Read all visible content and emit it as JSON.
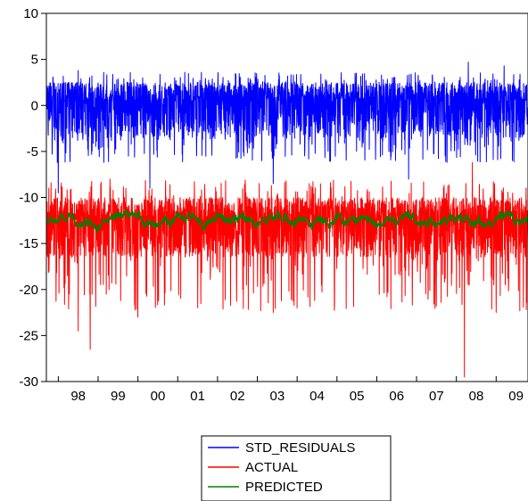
{
  "chart_data": {
    "type": "line",
    "title": "",
    "xlabel": "",
    "ylabel": "",
    "ylim": [
      -30,
      10
    ],
    "yticks": [
      10,
      5,
      0,
      -5,
      -10,
      -15,
      -20,
      -25,
      -30
    ],
    "yticks_text": [
      "10",
      "5",
      "0",
      "-5",
      "-10",
      "-15",
      "-20",
      "-25",
      "-30"
    ],
    "xlim": [
      1997.7,
      2009.8
    ],
    "xticks_text": [
      "98",
      "99",
      "00",
      "01",
      "02",
      "03",
      "04",
      "05",
      "06",
      "07",
      "08",
      "09"
    ],
    "grid": false,
    "legend_position": "bottom-center",
    "series": [
      {
        "name": "STD_RESIDUALS",
        "color": "#0000ff",
        "mean": 0.4,
        "upper_band": 2.5,
        "lower_band": -3.5,
        "min": -9.5,
        "max": 4.7,
        "spikes": [
          {
            "x": 2008.3,
            "y": 4.7
          },
          {
            "x": 2009.2,
            "y": 4.3
          },
          {
            "x": 1998.5,
            "y": 3.8
          },
          {
            "x": 1998.0,
            "y": -9.5
          },
          {
            "x": 2000.3,
            "y": -9.0
          },
          {
            "x": 2003.4,
            "y": -8.5
          },
          {
            "x": 2006.8,
            "y": -8.0
          }
        ]
      },
      {
        "name": "ACTUAL",
        "color": "#ff0000",
        "mean": -12.5,
        "upper_band": -10.0,
        "lower_band": -16.5,
        "min": -29.5,
        "max": -6.2,
        "spikes": [
          {
            "x": 2008.2,
            "y": -29.5
          },
          {
            "x": 1998.8,
            "y": -26.5
          },
          {
            "x": 1998.5,
            "y": -24.5
          },
          {
            "x": 2000.0,
            "y": -23.0
          },
          {
            "x": 2009.0,
            "y": -22.5
          },
          {
            "x": 2003.4,
            "y": -22.5
          },
          {
            "x": 2001.5,
            "y": -22.0
          },
          {
            "x": 2004.0,
            "y": -22.0
          },
          {
            "x": 2008.4,
            "y": -6.2
          },
          {
            "x": 1999.3,
            "y": -8.0
          }
        ]
      },
      {
        "name": "PREDICTED",
        "color": "#008000",
        "mean": -12.5,
        "upper_band": -10.5,
        "lower_band": -14.0,
        "min": -14.0,
        "max": -10.2,
        "spikes": []
      }
    ]
  }
}
